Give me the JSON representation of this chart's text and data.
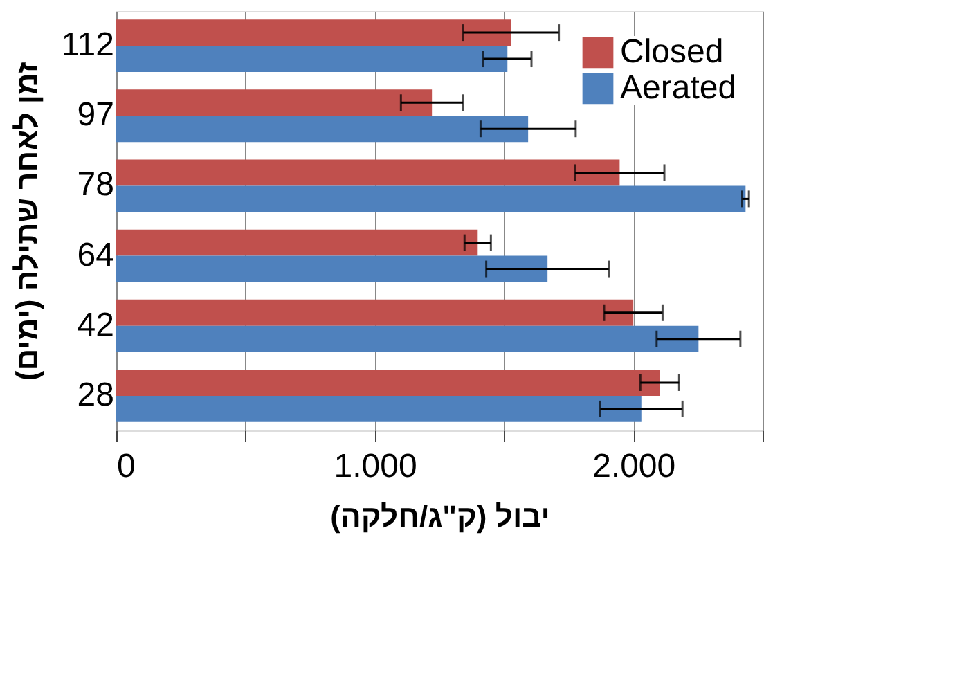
{
  "chart_data": {
    "type": "bar",
    "orientation": "horizontal",
    "xlabel": "יבול (ק\"ג/חלקה)",
    "ylabel": "זמן לאחר שתילה (ימים)",
    "categories": [
      "112",
      "97",
      "78",
      "64",
      "42",
      "28"
    ],
    "series": [
      {
        "name": "Closed",
        "color": "#c0504d",
        "values": [
          1527,
          1221,
          1947,
          1398,
          2000,
          2102
        ],
        "errors": [
          185,
          120,
          173,
          51,
          113,
          75
        ]
      },
      {
        "name": "Aerated",
        "color": "#4f81bd",
        "values": [
          1513,
          1593,
          2434,
          1668,
          2252,
          2031
        ],
        "errors": [
          93,
          184,
          13,
          237,
          162,
          159
        ]
      }
    ],
    "xlim": [
      0,
      2500
    ],
    "xticks": [
      {
        "value": 0,
        "label": "0"
      },
      {
        "value": 500,
        "label": null
      },
      {
        "value": 1000,
        "label": "1.000"
      },
      {
        "value": 1500,
        "label": null
      },
      {
        "value": 2000,
        "label": "2.000"
      },
      {
        "value": 2500,
        "label": null
      }
    ],
    "grid": "x",
    "legend": "top right"
  }
}
